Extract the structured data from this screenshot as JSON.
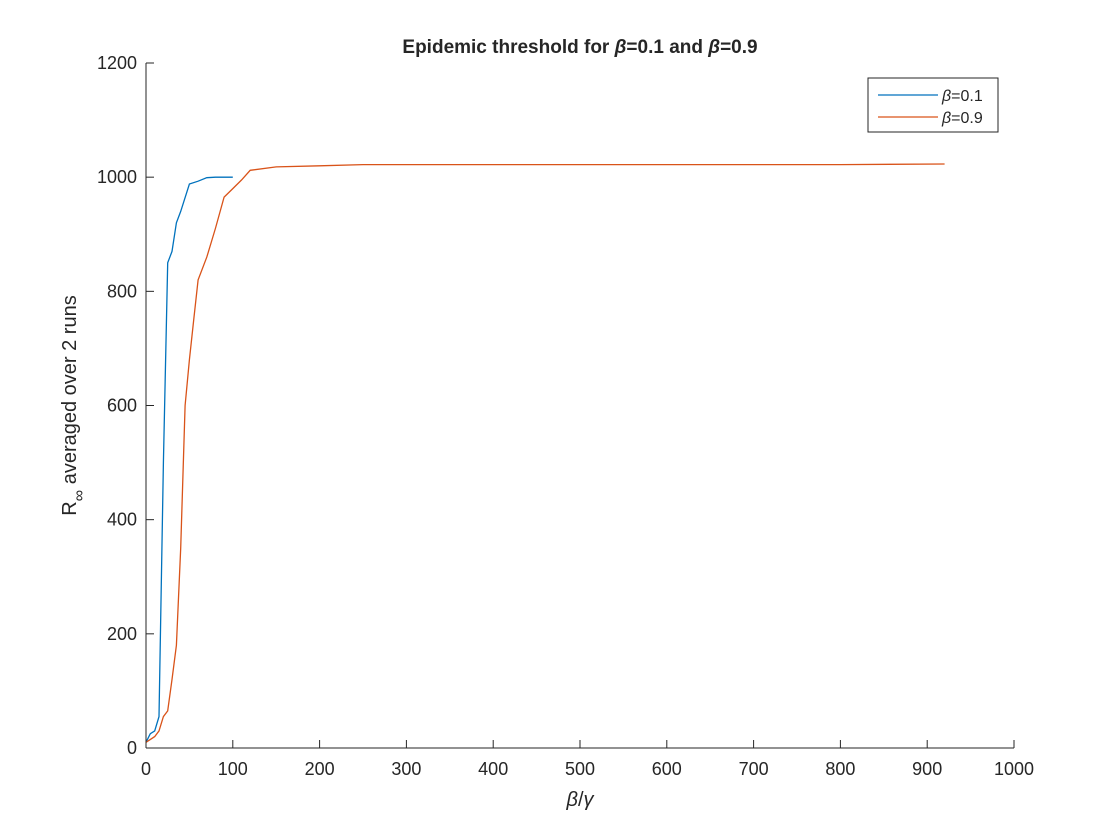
{
  "chart_data": {
    "type": "line",
    "title_parts": [
      {
        "text": "Epidemic threshold for ",
        "italic": false
      },
      {
        "text": "β",
        "italic": true
      },
      {
        "text": "=0.1 and ",
        "italic": false
      },
      {
        "text": "β",
        "italic": true
      },
      {
        "text": "=0.9",
        "italic": false
      }
    ],
    "xlabel_parts": [
      {
        "text": "β",
        "italic": true
      },
      {
        "text": "/",
        "italic": false
      },
      {
        "text": "γ",
        "italic": true
      }
    ],
    "ylabel": {
      "main": "R",
      "subscript": "∞",
      "rest": " averaged over 2 runs"
    },
    "xlim": [
      0,
      1000
    ],
    "ylim": [
      0,
      1200
    ],
    "xticks": [
      0,
      100,
      200,
      300,
      400,
      500,
      600,
      700,
      800,
      900,
      1000
    ],
    "yticks": [
      0,
      200,
      400,
      600,
      800,
      1000,
      1200
    ],
    "grid": false,
    "legend_position": "top-right",
    "series": [
      {
        "name_parts": [
          {
            "text": "β",
            "italic": true
          },
          {
            "text": "=0.1",
            "italic": false
          }
        ],
        "color": "#0072BD",
        "x": [
          0,
          5,
          10,
          15,
          20,
          25,
          30,
          35,
          40,
          50,
          60,
          70,
          80,
          90,
          100
        ],
        "y": [
          10,
          25,
          30,
          55,
          500,
          850,
          870,
          920,
          940,
          988,
          993,
          999,
          1000,
          1000,
          1000
        ]
      },
      {
        "name_parts": [
          {
            "text": "β",
            "italic": true
          },
          {
            "text": "=0.9",
            "italic": false
          }
        ],
        "color": "#D95319",
        "x": [
          0,
          10,
          15,
          20,
          25,
          30,
          35,
          40,
          45,
          50,
          55,
          60,
          70,
          80,
          90,
          100,
          110,
          120,
          150,
          200,
          250,
          300,
          350,
          400,
          500,
          600,
          700,
          800,
          920
        ],
        "y": [
          10,
          20,
          30,
          55,
          65,
          120,
          180,
          350,
          600,
          680,
          750,
          820,
          860,
          910,
          965,
          980,
          995,
          1012,
          1018,
          1020,
          1022,
          1022,
          1022,
          1022,
          1022,
          1022,
          1022,
          1022,
          1023
        ]
      }
    ]
  }
}
